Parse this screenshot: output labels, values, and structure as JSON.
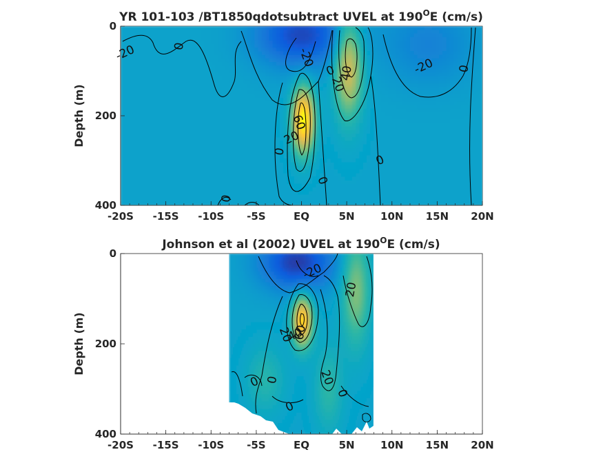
{
  "chart_data": [
    {
      "type": "heatmap",
      "title": "YR 101-103 /BT1850qdotsubtract UVEL at 190",
      "title_sup": "O",
      "title_suffix": "E (cm/s)",
      "ylabel": "Depth (m)",
      "xlabel": "",
      "xlim": [
        -20,
        20
      ],
      "ylim": [
        0,
        400
      ],
      "y_reversed": true,
      "x_ticks": [
        {
          "value": -20,
          "label": "-20S"
        },
        {
          "value": -15,
          "label": "-15S"
        },
        {
          "value": -10,
          "label": "-10S"
        },
        {
          "value": -5,
          "label": "-5S"
        },
        {
          "value": 0,
          "label": "EQ"
        },
        {
          "value": 5,
          "label": "5N"
        },
        {
          "value": 10,
          "label": "10N"
        },
        {
          "value": 15,
          "label": "15N"
        },
        {
          "value": 20,
          "label": "20N"
        }
      ],
      "y_ticks": [
        {
          "value": 0,
          "label": "0"
        },
        {
          "value": 200,
          "label": "200"
        },
        {
          "value": 400,
          "label": "400"
        }
      ],
      "data_extent_x": [
        -20,
        20
      ],
      "features": [
        {
          "kind": "jet",
          "name": "EUC",
          "x": 0.2,
          "depth": 210,
          "sx": 1.2,
          "sz": 70,
          "max": 70
        },
        {
          "kind": "jet",
          "name": "NECC",
          "x": 5.2,
          "depth": 90,
          "sx": 1.5,
          "sz": 110,
          "max": 45
        },
        {
          "kind": "jet",
          "name": "SEC",
          "x": 0,
          "depth": 20,
          "sx": 5,
          "sz": 70,
          "max": -32
        },
        {
          "kind": "jet",
          "name": "NEC",
          "x": 14,
          "depth": 40,
          "sx": 5,
          "sz": 90,
          "max": -12
        }
      ],
      "contour_labels": [
        {
          "x": -19.5,
          "depth": 60,
          "text": "-20"
        },
        {
          "x": -13.5,
          "depth": 45,
          "text": "0"
        },
        {
          "x": 0.5,
          "depth": 70,
          "text": "-20"
        },
        {
          "x": 3.2,
          "depth": 100,
          "text": "0"
        },
        {
          "x": 5,
          "depth": 105,
          "text": "40"
        },
        {
          "x": 4,
          "depth": 130,
          "text": "20"
        },
        {
          "x": 13.5,
          "depth": 90,
          "text": "-20"
        },
        {
          "x": 18,
          "depth": 95,
          "text": "0"
        },
        {
          "x": -0.3,
          "depth": 215,
          "text": "60"
        },
        {
          "x": -1.1,
          "depth": 250,
          "text": "20"
        },
        {
          "x": -2.4,
          "depth": 280,
          "text": "0"
        },
        {
          "x": 2.3,
          "depth": 345,
          "text": "0"
        },
        {
          "x": 8.7,
          "depth": 300,
          "text": "0"
        },
        {
          "x": -8.3,
          "depth": 385,
          "text": "0"
        }
      ]
    },
    {
      "type": "heatmap",
      "title": "Johnson et al (2002) UVEL at 190",
      "title_sup": "O",
      "title_suffix": "E (cm/s)",
      "ylabel": "Depth (m)",
      "xlabel": "",
      "xlim": [
        -20,
        20
      ],
      "ylim": [
        0,
        400
      ],
      "y_reversed": true,
      "x_ticks": [
        {
          "value": -20,
          "label": "-20S"
        },
        {
          "value": -15,
          "label": "-15S"
        },
        {
          "value": -10,
          "label": "-10S"
        },
        {
          "value": -5,
          "label": "-5S"
        },
        {
          "value": 0,
          "label": "EQ"
        },
        {
          "value": 5,
          "label": "5N"
        },
        {
          "value": 10,
          "label": "10N"
        },
        {
          "value": 15,
          "label": "15N"
        },
        {
          "value": 20,
          "label": "20N"
        }
      ],
      "y_ticks": [
        {
          "value": 0,
          "label": "0"
        },
        {
          "value": 200,
          "label": "200"
        },
        {
          "value": 400,
          "label": "400"
        }
      ],
      "data_extent_x": [
        -8,
        8
      ],
      "features": [
        {
          "kind": "jet",
          "name": "EUC",
          "x": 0.1,
          "depth": 150,
          "sx": 1.1,
          "sz": 55,
          "max": 60
        },
        {
          "kind": "jet",
          "name": "NECC",
          "x": 6,
          "depth": 80,
          "sx": 1.5,
          "sz": 120,
          "max": 28
        },
        {
          "kind": "jet",
          "name": "SEC",
          "x": -0.5,
          "depth": 20,
          "sx": 4,
          "sz": 60,
          "max": -35
        },
        {
          "kind": "jet",
          "name": "deep-south",
          "x": -4,
          "depth": 280,
          "sx": 2,
          "sz": 70,
          "max": 12
        },
        {
          "kind": "jet",
          "name": "deep-north",
          "x": 3,
          "depth": 300,
          "sx": 1.5,
          "sz": 90,
          "max": 14
        }
      ],
      "contour_labels": [
        {
          "x": 1.2,
          "depth": 40,
          "text": "-20"
        },
        {
          "x": 5.5,
          "depth": 80,
          "text": "20"
        },
        {
          "x": -1.8,
          "depth": 180,
          "text": "20"
        },
        {
          "x": -0.7,
          "depth": 180,
          "text": "40"
        },
        {
          "x": -0.1,
          "depth": 175,
          "text": "60"
        },
        {
          "x": 2.8,
          "depth": 275,
          "text": "20"
        },
        {
          "x": -5.2,
          "depth": 285,
          "text": "0"
        },
        {
          "x": -3.2,
          "depth": 280,
          "text": "0"
        },
        {
          "x": 4.5,
          "depth": 310,
          "text": "0"
        },
        {
          "x": -1.3,
          "depth": 340,
          "text": "0"
        }
      ]
    }
  ]
}
